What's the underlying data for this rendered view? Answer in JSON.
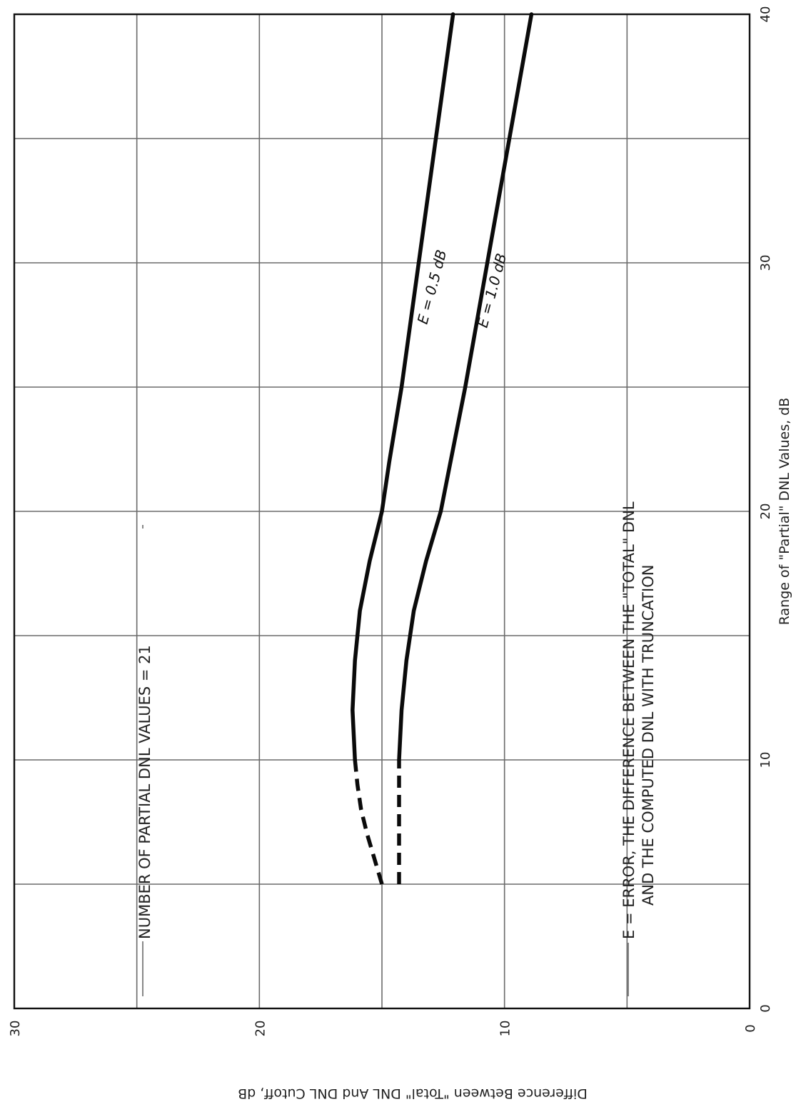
{
  "chart_data": {
    "type": "line",
    "xlabel": "Range of \"Partial\" DNL Values, dB",
    "ylabel": "Difference Between \"Total\" DNL And DNL Cutoff, dB",
    "xlim": [
      0,
      40
    ],
    "ylim": [
      0,
      30
    ],
    "x_ticks": [
      "0",
      "10",
      "20",
      "30",
      "40"
    ],
    "y_ticks": [
      "30",
      "20",
      "10",
      "0"
    ],
    "grid": true,
    "orientation": "rotated 90 degrees counter-clockwise",
    "annotations": {
      "count": "NUMBER OF PARTIAL DNL VALUES = 21",
      "definition_line1": "E = ERROR, THE DIFFERENCE BETWEEN THE \"TOTAL\" DNL",
      "definition_line2": "AND THE COMPUTED DNL WITH TRUNCATION"
    },
    "series": [
      {
        "name": "E = 0.5 dB",
        "dashed": {
          "x": [
            5,
            6,
            7,
            8,
            9,
            10
          ],
          "y": [
            15.0,
            15.3,
            15.6,
            15.85,
            16.0,
            16.1
          ]
        },
        "solid": {
          "x": [
            10,
            12,
            14,
            16,
            18,
            20,
            22,
            25,
            30,
            35,
            40
          ],
          "y": [
            16.1,
            16.2,
            16.1,
            15.9,
            15.5,
            15.0,
            14.7,
            14.2,
            13.5,
            12.8,
            12.1
          ]
        }
      },
      {
        "name": "E = 1.0 dB",
        "dashed": {
          "x": [
            5,
            6,
            7,
            8,
            9,
            10
          ],
          "y": [
            14.3,
            14.3,
            14.3,
            14.3,
            14.3,
            14.3
          ]
        },
        "solid": {
          "x": [
            10,
            12,
            14,
            16,
            18,
            20,
            22,
            25,
            30,
            35,
            40
          ],
          "y": [
            14.3,
            14.2,
            14.0,
            13.7,
            13.2,
            12.6,
            12.2,
            11.6,
            10.7,
            9.8,
            8.9
          ]
        }
      }
    ]
  }
}
